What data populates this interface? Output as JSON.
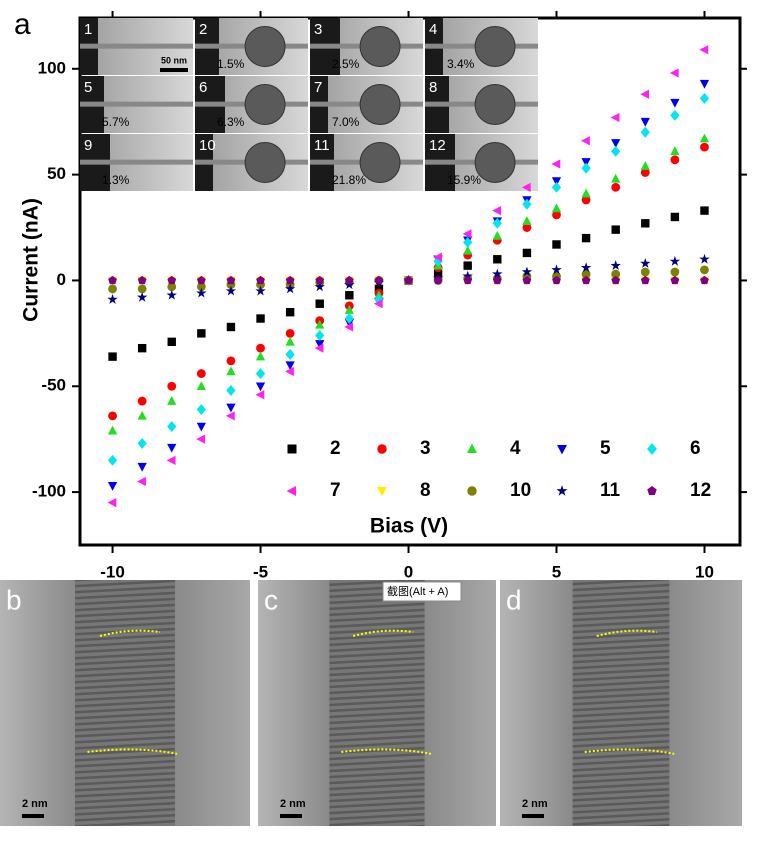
{
  "chart_data": {
    "type": "scatter",
    "panel_label": "a",
    "xlabel": "Bias (V)",
    "ylabel": "Current (nA)",
    "x": [
      -10,
      -9,
      -8,
      -7,
      -6,
      -5,
      -4,
      -3,
      -2,
      -1,
      0,
      1,
      2,
      3,
      4,
      5,
      6,
      7,
      8,
      9,
      10
    ],
    "xlim": [
      -11.1,
      11.2
    ],
    "xticks": [
      -10,
      -5,
      0,
      5,
      10
    ],
    "ylim": [
      -125,
      124
    ],
    "yticks": [
      -100,
      -50,
      0,
      50,
      100
    ],
    "series": [
      {
        "name": "2",
        "color": "#000000",
        "marker": "square",
        "values": [
          -36,
          -32,
          -29,
          -25,
          -22,
          -18,
          -15,
          -11,
          -7,
          -4,
          0,
          3,
          7,
          10,
          13,
          17,
          20,
          24,
          27,
          30,
          33
        ]
      },
      {
        "name": "3",
        "color": "#ff0000",
        "marker": "circle",
        "values": [
          -64,
          -57,
          -50,
          -44,
          -38,
          -32,
          -25,
          -19,
          -12,
          -6,
          0,
          6,
          12,
          19,
          25,
          31,
          38,
          44,
          51,
          57,
          63
        ]
      },
      {
        "name": "4",
        "color": "#22dd22",
        "marker": "triangle-up",
        "values": [
          -71,
          -64,
          -57,
          -50,
          -43,
          -36,
          -29,
          -21,
          -14,
          -7,
          0,
          7,
          14,
          21,
          28,
          34,
          41,
          48,
          54,
          61,
          67
        ]
      },
      {
        "name": "5",
        "color": "#0000ee",
        "marker": "triangle-down",
        "values": [
          -97,
          -88,
          -79,
          -69,
          -60,
          -50,
          -40,
          -30,
          -20,
          -10,
          0,
          10,
          19,
          28,
          38,
          47,
          56,
          65,
          75,
          84,
          93
        ]
      },
      {
        "name": "6",
        "color": "#00e5ee",
        "marker": "diamond",
        "values": [
          -85,
          -77,
          -69,
          -61,
          -52,
          -44,
          -35,
          -26,
          -18,
          -9,
          0,
          9,
          18,
          27,
          36,
          44,
          53,
          61,
          70,
          78,
          86
        ]
      },
      {
        "name": "7",
        "color": "#ff22ee",
        "marker": "triangle-left",
        "values": [
          -105,
          -95,
          -85,
          -75,
          -64,
          -54,
          -43,
          -32,
          -22,
          -11,
          0,
          11,
          22,
          33,
          44,
          55,
          66,
          77,
          88,
          98,
          109
        ]
      },
      {
        "name": "8",
        "color": "#ffee00",
        "marker": "triangle-down",
        "values": [
          0,
          0,
          0,
          0,
          0,
          0,
          0,
          0,
          0,
          0,
          0,
          0,
          0,
          0,
          0,
          0,
          0,
          0,
          0,
          0,
          0
        ]
      },
      {
        "name": "10",
        "color": "#808000",
        "marker": "circle",
        "values": [
          -4,
          -4,
          -3,
          -3,
          -2,
          -2,
          -2,
          -1,
          -1,
          0,
          0,
          0,
          1,
          1,
          2,
          2,
          3,
          3,
          4,
          4,
          5
        ]
      },
      {
        "name": "11",
        "color": "#000080",
        "marker": "star",
        "values": [
          -9,
          -8,
          -7,
          -6,
          -5,
          -5,
          -4,
          -3,
          -2,
          -1,
          0,
          1,
          2,
          3,
          4,
          5,
          6,
          7,
          8,
          9,
          10
        ]
      },
      {
        "name": "12",
        "color": "#800080",
        "marker": "pentagon",
        "values": [
          0,
          0,
          0,
          0,
          0,
          0,
          0,
          0,
          0,
          0,
          0,
          0,
          0,
          0,
          0,
          0,
          0,
          0,
          0,
          0,
          0
        ]
      }
    ]
  },
  "insets": {
    "scale_bar": "50 nm",
    "tiles": [
      {
        "label": "1"
      },
      {
        "label": "2",
        "strain": "1.5%"
      },
      {
        "label": "3",
        "strain": "2.5%"
      },
      {
        "label": "4",
        "strain": "3.4%"
      },
      {
        "label": "5",
        "strain": "5.7%"
      },
      {
        "label": "6",
        "strain": "6.3%"
      },
      {
        "label": "7",
        "strain": "7.0%"
      },
      {
        "label": "8"
      },
      {
        "label": "9",
        "strain": "1.3%"
      },
      {
        "label": "10"
      },
      {
        "label": "11",
        "strain": "21.8%"
      },
      {
        "label": "12",
        "strain": "15.9%"
      }
    ]
  },
  "panels": [
    {
      "label": "b",
      "scale_bar": "2 nm"
    },
    {
      "label": "c",
      "scale_bar": "2 nm"
    },
    {
      "label": "d",
      "scale_bar": "2 nm"
    }
  ],
  "tooltip": "截图(Alt + A)"
}
